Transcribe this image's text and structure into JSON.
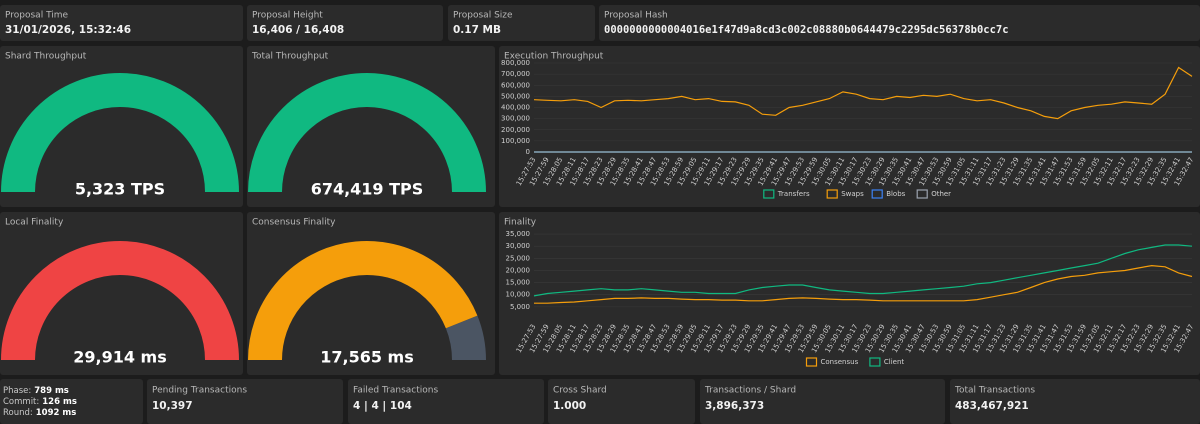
{
  "top_stats": [
    {
      "title": "Proposal Time",
      "value": "31/01/2026, 15:32:46"
    },
    {
      "title": "Proposal Height",
      "value": "16,406 / 16,408"
    },
    {
      "title": "Proposal Size",
      "value": "0.17 MB"
    },
    {
      "title": "Proposal Hash",
      "value": "0000000000004016e1f47d9a8cd3c002c08880b0644479c2295dc56378b0cc7c"
    }
  ],
  "gauges": [
    {
      "title": "Shard Throughput",
      "value": 5323,
      "value_label": "5,323 TPS",
      "max": 5323,
      "color": "#10b981"
    },
    {
      "title": "Total Throughput",
      "value": 674419,
      "value_label": "674,419 TPS",
      "max": 674419,
      "color": "#10b981"
    },
    {
      "title": "Local Finality",
      "value": 29914,
      "value_label": "29,914 ms",
      "max": 29914,
      "color": "#ef4444"
    },
    {
      "title": "Consensus Finality",
      "value": 17565,
      "value_label": "17,565 ms",
      "max": 20000,
      "color": "#f59e0b"
    }
  ],
  "chart_data": [
    {
      "type": "line",
      "title": "Execution Throughput",
      "legend": "bottom",
      "x": [
        "15:27:53",
        "15:27:59",
        "15:28:05",
        "15:28:11",
        "15:28:17",
        "15:28:23",
        "15:28:29",
        "15:28:35",
        "15:28:41",
        "15:28:47",
        "15:28:53",
        "15:28:59",
        "15:29:05",
        "15:29:11",
        "15:29:17",
        "15:29:23",
        "15:29:29",
        "15:29:35",
        "15:29:41",
        "15:29:47",
        "15:29:53",
        "15:29:59",
        "15:30:05",
        "15:30:11",
        "15:30:17",
        "15:30:23",
        "15:30:29",
        "15:30:35",
        "15:30:41",
        "15:30:47",
        "15:30:53",
        "15:30:59",
        "15:31:05",
        "15:31:11",
        "15:31:17",
        "15:31:23",
        "15:31:29",
        "15:31:35",
        "15:31:41",
        "15:31:47",
        "15:31:53",
        "15:31:59",
        "15:32:05",
        "15:32:11",
        "15:32:17",
        "15:32:23",
        "15:32:29",
        "15:32:35",
        "15:32:41",
        "15:32:47"
      ],
      "ylim": [
        0,
        800000
      ],
      "yticks": [
        0,
        {
          "value": 100000,
          "label": "100,000"
        },
        {
          "value": 200000,
          "label": "200,000"
        },
        {
          "value": 300000,
          "label": "300,000"
        },
        {
          "value": 400000,
          "label": "400,000"
        },
        {
          "value": 500000,
          "label": "500,000"
        },
        {
          "value": 600000,
          "label": "600,000"
        },
        {
          "value": 700000,
          "label": "700,000"
        },
        {
          "value": 800000,
          "label": "800,000"
        }
      ],
      "series": [
        {
          "name": "Transfers",
          "color": "#10b981",
          "values": [
            0,
            0,
            0,
            0,
            0,
            0,
            0,
            0,
            0,
            0,
            0,
            0,
            0,
            0,
            0,
            0,
            0,
            0,
            0,
            0,
            0,
            0,
            0,
            0,
            0,
            0,
            0,
            0,
            0,
            0,
            0,
            0,
            0,
            0,
            0,
            0,
            0,
            0,
            0,
            0,
            0,
            0,
            0,
            0,
            0,
            0,
            0,
            0,
            0,
            0
          ]
        },
        {
          "name": "Swaps",
          "color": "#f59e0b",
          "values": [
            470000,
            465000,
            460000,
            470000,
            455000,
            400000,
            460000,
            465000,
            460000,
            470000,
            480000,
            500000,
            470000,
            480000,
            455000,
            450000,
            420000,
            340000,
            330000,
            400000,
            420000,
            450000,
            480000,
            540000,
            520000,
            480000,
            470000,
            500000,
            490000,
            510000,
            500000,
            520000,
            480000,
            460000,
            470000,
            440000,
            400000,
            370000,
            320000,
            300000,
            370000,
            400000,
            420000,
            430000,
            450000,
            440000,
            430000,
            520000,
            760000,
            680000
          ]
        },
        {
          "name": "Blobs",
          "color": "#3b82f6",
          "values": [
            0,
            0,
            0,
            0,
            0,
            0,
            0,
            0,
            0,
            0,
            0,
            0,
            0,
            0,
            0,
            0,
            0,
            0,
            0,
            0,
            0,
            0,
            0,
            0,
            0,
            0,
            0,
            0,
            0,
            0,
            0,
            0,
            0,
            0,
            0,
            0,
            0,
            0,
            0,
            0,
            0,
            0,
            0,
            0,
            0,
            0,
            0,
            0,
            0,
            0
          ]
        },
        {
          "name": "Other",
          "color": "#9ca3af",
          "values": [
            0,
            0,
            0,
            0,
            0,
            0,
            0,
            0,
            0,
            0,
            0,
            0,
            0,
            0,
            0,
            0,
            0,
            0,
            0,
            0,
            0,
            0,
            0,
            0,
            0,
            0,
            0,
            0,
            0,
            0,
            0,
            0,
            0,
            0,
            0,
            0,
            0,
            0,
            0,
            0,
            0,
            0,
            0,
            0,
            0,
            0,
            0,
            0,
            0,
            0
          ]
        }
      ]
    },
    {
      "type": "line",
      "title": "Finality",
      "legend": "bottom",
      "x": [
        "15:27:53",
        "15:27:59",
        "15:28:05",
        "15:28:11",
        "15:28:17",
        "15:28:23",
        "15:28:29",
        "15:28:35",
        "15:28:41",
        "15:28:47",
        "15:28:53",
        "15:28:59",
        "15:29:05",
        "15:29:11",
        "15:29:17",
        "15:29:23",
        "15:29:29",
        "15:29:35",
        "15:29:41",
        "15:29:47",
        "15:29:53",
        "15:29:59",
        "15:30:05",
        "15:30:11",
        "15:30:17",
        "15:30:23",
        "15:30:29",
        "15:30:35",
        "15:30:41",
        "15:30:47",
        "15:30:53",
        "15:30:59",
        "15:31:05",
        "15:31:11",
        "15:31:17",
        "15:31:23",
        "15:31:29",
        "15:31:35",
        "15:31:41",
        "15:31:47",
        "15:31:53",
        "15:31:59",
        "15:32:05",
        "15:32:11",
        "15:32:17",
        "15:32:23",
        "15:32:29",
        "15:32:35",
        "15:32:41",
        "15:32:47"
      ],
      "ylim": [
        0,
        37500
      ],
      "yticks": [
        {
          "value": 5000,
          "label": "5,000"
        },
        {
          "value": 10000,
          "label": "10,000"
        },
        {
          "value": 15000,
          "label": "15,000"
        },
        {
          "value": 20000,
          "label": "20,000"
        },
        {
          "value": 25000,
          "label": "25,000"
        },
        {
          "value": 30000,
          "label": "30,000"
        },
        {
          "value": 35000,
          "label": "35,000"
        }
      ],
      "series": [
        {
          "name": "Consensus",
          "color": "#f59e0b",
          "values": [
            6500,
            6500,
            6800,
            7000,
            7500,
            8000,
            8500,
            8500,
            8700,
            8500,
            8500,
            8200,
            8000,
            8000,
            7800,
            7800,
            7500,
            7500,
            8000,
            8500,
            8700,
            8500,
            8200,
            8000,
            8000,
            7800,
            7500,
            7500,
            7500,
            7500,
            7500,
            7500,
            7500,
            8000,
            9000,
            10000,
            11000,
            13000,
            15000,
            16500,
            17500,
            18000,
            19000,
            19500,
            20000,
            21000,
            22000,
            21500,
            19000,
            17500
          ]
        },
        {
          "name": "Client",
          "color": "#10b981",
          "values": [
            9500,
            10500,
            11000,
            11500,
            12000,
            12500,
            12000,
            12000,
            12500,
            12000,
            11500,
            11000,
            11000,
            10500,
            10500,
            10500,
            12000,
            13000,
            13500,
            14000,
            14000,
            13000,
            12000,
            11500,
            11000,
            10500,
            10500,
            11000,
            11500,
            12000,
            12500,
            13000,
            13500,
            14500,
            15000,
            16000,
            17000,
            18000,
            19000,
            20000,
            21000,
            22000,
            23000,
            25000,
            27000,
            28500,
            29500,
            30500,
            30500,
            30000
          ]
        }
      ]
    }
  ],
  "timings": [
    {
      "label": "Phase:",
      "value": "789 ms"
    },
    {
      "label": "Commit:",
      "value": "126 ms"
    },
    {
      "label": "Round:",
      "value": "1092 ms"
    }
  ],
  "bottom_stats": [
    {
      "title": "Pending Transactions",
      "value": "10,397"
    },
    {
      "title": "Failed Transactions",
      "value": "4 | 4 | 104"
    },
    {
      "title": "Cross Shard",
      "value": "1.000"
    },
    {
      "title": "Transactions / Shard",
      "value": "3,896,373"
    },
    {
      "title": "Total Transactions",
      "value": "483,467,921"
    }
  ]
}
